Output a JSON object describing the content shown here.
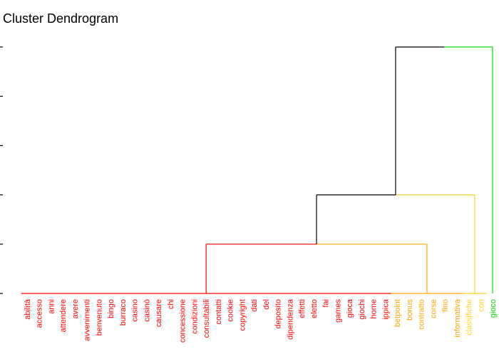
{
  "title": "Cluster Dendrogram",
  "colors": {
    "red": "#ff0000",
    "orange": "#ffa500",
    "gold": "#ffd21e",
    "green": "#00e000",
    "black": "#000000"
  },
  "chart_data": {
    "type": "dendrogram",
    "title": "Cluster Dendrogram",
    "xlabel": "",
    "ylabel": "",
    "ylim": [
      0,
      5
    ],
    "leaves": [
      {
        "label": "abilità",
        "group": "red"
      },
      {
        "label": "accesso",
        "group": "red"
      },
      {
        "label": "anni",
        "group": "red"
      },
      {
        "label": "attendere",
        "group": "red"
      },
      {
        "label": "avere",
        "group": "red"
      },
      {
        "label": "avvenimenti",
        "group": "red"
      },
      {
        "label": "benvenuto",
        "group": "red"
      },
      {
        "label": "bingo",
        "group": "red"
      },
      {
        "label": "burraco",
        "group": "red"
      },
      {
        "label": "casino",
        "group": "red"
      },
      {
        "label": "casinò",
        "group": "red"
      },
      {
        "label": "causare",
        "group": "red"
      },
      {
        "label": "chi",
        "group": "red"
      },
      {
        "label": "concessione",
        "group": "red"
      },
      {
        "label": "condizioni",
        "group": "red"
      },
      {
        "label": "consultabili",
        "group": "red"
      },
      {
        "label": "contatti",
        "group": "red"
      },
      {
        "label": "cookie",
        "group": "red"
      },
      {
        "label": "copyright",
        "group": "red"
      },
      {
        "label": "dati",
        "group": "red"
      },
      {
        "label": "del",
        "group": "red"
      },
      {
        "label": "deposito",
        "group": "red"
      },
      {
        "label": "dipendenza",
        "group": "red"
      },
      {
        "label": "effetti",
        "group": "red"
      },
      {
        "label": "eletto",
        "group": "red"
      },
      {
        "label": "fai",
        "group": "red"
      },
      {
        "label": "games",
        "group": "red"
      },
      {
        "label": "gioca",
        "group": "red"
      },
      {
        "label": "giochi",
        "group": "red"
      },
      {
        "label": "home",
        "group": "red"
      },
      {
        "label": "ippica",
        "group": "red"
      },
      {
        "label": "betpoint",
        "group": "orange"
      },
      {
        "label": "bonus",
        "group": "orange"
      },
      {
        "label": "contratto",
        "group": "orange"
      },
      {
        "label": "corse",
        "group": "orange"
      },
      {
        "label": "fino",
        "group": "orange"
      },
      {
        "label": "informativa",
        "group": "orange"
      },
      {
        "label": "classifiche",
        "group": "gold"
      },
      {
        "label": "con",
        "group": "gold"
      },
      {
        "label": "gioco",
        "group": "green"
      }
    ],
    "clusters": [
      {
        "name": "red",
        "leaves": [
          0,
          30
        ],
        "height": 0
      },
      {
        "name": "orange",
        "leaves": [
          31,
          36
        ],
        "height": 0
      },
      {
        "name": "gold",
        "leaves": [
          37,
          38
        ],
        "height": 0
      }
    ],
    "merges": [
      {
        "left": "red",
        "right": "orange",
        "height": 1,
        "color_left": "red",
        "color_right": "orange",
        "result": "A"
      },
      {
        "left": "A",
        "right": "gold",
        "height": 2,
        "color_left": "black",
        "color_right": "gold",
        "result": "B"
      },
      {
        "left": "B",
        "right": "green",
        "height": 5,
        "color_left": "black",
        "color_right": "green",
        "result": "root"
      }
    ]
  }
}
